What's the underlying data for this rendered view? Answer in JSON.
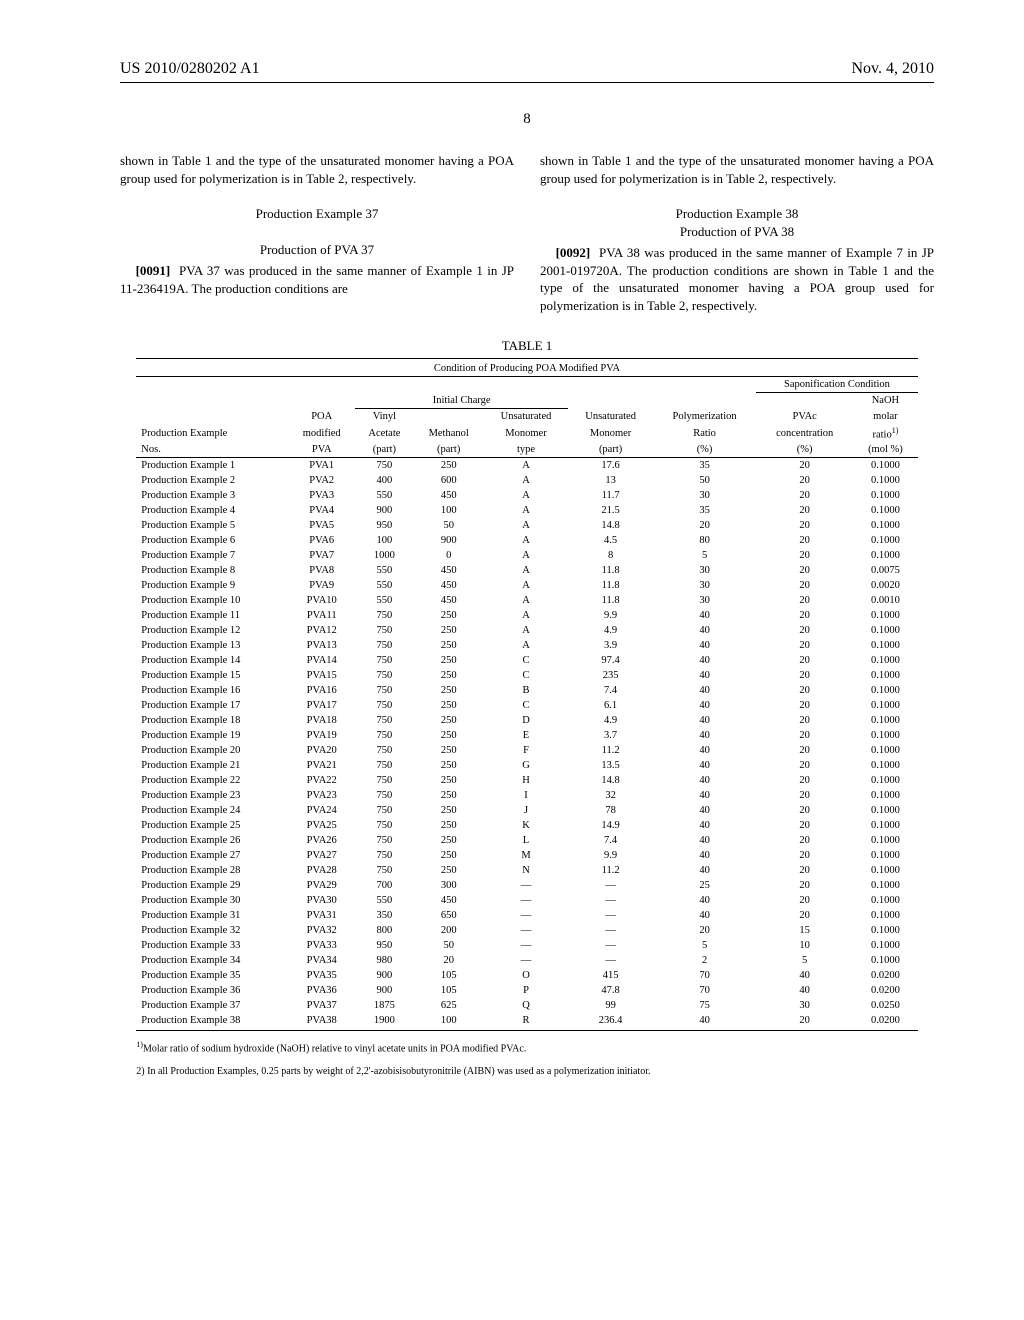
{
  "header": {
    "pubnum": "US 2010/0280202 A1",
    "date": "Nov. 4, 2010"
  },
  "pagenum": "8",
  "left_col": {
    "lead": "shown in Table 1 and the type of the unsaturated monomer having a POA group used for polymerization is in Table 2, respectively.",
    "heading1": "Production Example 37",
    "heading2": "Production of PVA 37",
    "paranum": "[0091]",
    "paratext": "PVA 37 was produced in the same manner of Example 1 in JP 11-236419A. The production conditions are"
  },
  "right_col": {
    "lead": "shown in Table 1 and the type of the unsaturated monomer having a POA group used for polymerization is in Table 2, respectively.",
    "heading1": "Production Example 38",
    "heading2": "Production of PVA 38",
    "paranum": "[0092]",
    "paratext": "PVA 38 was produced in the same manner of Example 7 in JP 2001-019720A. The production conditions are shown in Table 1 and the type of the unsaturated monomer having a POA group used for polymerization is in Table 2, respectively."
  },
  "table": {
    "label": "TABLE 1",
    "subtitle": "Condition of Producing POA Modified PVA",
    "span_heads": {
      "initial": "Initial Charge",
      "sapon": "Saponification Condition"
    },
    "cols": {
      "c0a": "Production Example",
      "c0b": "Nos.",
      "c1a": "POA",
      "c1b": "modified",
      "c1c": "PVA",
      "c2a": "Vinyl",
      "c2b": "Acetate",
      "c2c": "(part)",
      "c3a": "Methanol",
      "c3b": "(part)",
      "c4a": "Unsaturated",
      "c4b": "Monomer",
      "c4c": "type",
      "c5a": "Unsaturated",
      "c5b": "Monomer",
      "c5c": "(part)",
      "c6a": "Polymerization",
      "c6b": "Ratio",
      "c6c": "(%)",
      "c7a": "PVAc",
      "c7b": "concentration",
      "c7c": "(%)",
      "c8a": "NaOH",
      "c8b": "molar",
      "c8c": "ratio",
      "c8d": "(mol %)",
      "c8sup": "1)"
    },
    "rows": [
      [
        "Production Example 1",
        "PVA1",
        "750",
        "250",
        "A",
        "17.6",
        "35",
        "20",
        "0.1000"
      ],
      [
        "Production Example 2",
        "PVA2",
        "400",
        "600",
        "A",
        "13",
        "50",
        "20",
        "0.1000"
      ],
      [
        "Production Example 3",
        "PVA3",
        "550",
        "450",
        "A",
        "11.7",
        "30",
        "20",
        "0.1000"
      ],
      [
        "Production Example 4",
        "PVA4",
        "900",
        "100",
        "A",
        "21.5",
        "35",
        "20",
        "0.1000"
      ],
      [
        "Production Example 5",
        "PVA5",
        "950",
        "50",
        "A",
        "14.8",
        "20",
        "20",
        "0.1000"
      ],
      [
        "Production Example 6",
        "PVA6",
        "100",
        "900",
        "A",
        "4.5",
        "80",
        "20",
        "0.1000"
      ],
      [
        "Production Example 7",
        "PVA7",
        "1000",
        "0",
        "A",
        "8",
        "5",
        "20",
        "0.1000"
      ],
      [
        "Production Example 8",
        "PVA8",
        "550",
        "450",
        "A",
        "11.8",
        "30",
        "20",
        "0.0075"
      ],
      [
        "Production Example 9",
        "PVA9",
        "550",
        "450",
        "A",
        "11.8",
        "30",
        "20",
        "0.0020"
      ],
      [
        "Production Example 10",
        "PVA10",
        "550",
        "450",
        "A",
        "11.8",
        "30",
        "20",
        "0.0010"
      ],
      [
        "Production Example 11",
        "PVA11",
        "750",
        "250",
        "A",
        "9.9",
        "40",
        "20",
        "0.1000"
      ],
      [
        "Production Example 12",
        "PVA12",
        "750",
        "250",
        "A",
        "4.9",
        "40",
        "20",
        "0.1000"
      ],
      [
        "Production Example 13",
        "PVA13",
        "750",
        "250",
        "A",
        "3.9",
        "40",
        "20",
        "0.1000"
      ],
      [
        "Production Example 14",
        "PVA14",
        "750",
        "250",
        "C",
        "97.4",
        "40",
        "20",
        "0.1000"
      ],
      [
        "Production Example 15",
        "PVA15",
        "750",
        "250",
        "C",
        "235",
        "40",
        "20",
        "0.1000"
      ],
      [
        "Production Example 16",
        "PVA16",
        "750",
        "250",
        "B",
        "7.4",
        "40",
        "20",
        "0.1000"
      ],
      [
        "Production Example 17",
        "PVA17",
        "750",
        "250",
        "C",
        "6.1",
        "40",
        "20",
        "0.1000"
      ],
      [
        "Production Example 18",
        "PVA18",
        "750",
        "250",
        "D",
        "4.9",
        "40",
        "20",
        "0.1000"
      ],
      [
        "Production Example 19",
        "PVA19",
        "750",
        "250",
        "E",
        "3.7",
        "40",
        "20",
        "0.1000"
      ],
      [
        "Production Example 20",
        "PVA20",
        "750",
        "250",
        "F",
        "11.2",
        "40",
        "20",
        "0.1000"
      ],
      [
        "Production Example 21",
        "PVA21",
        "750",
        "250",
        "G",
        "13.5",
        "40",
        "20",
        "0.1000"
      ],
      [
        "Production Example 22",
        "PVA22",
        "750",
        "250",
        "H",
        "14.8",
        "40",
        "20",
        "0.1000"
      ],
      [
        "Production Example 23",
        "PVA23",
        "750",
        "250",
        "I",
        "32",
        "40",
        "20",
        "0.1000"
      ],
      [
        "Production Example 24",
        "PVA24",
        "750",
        "250",
        "J",
        "78",
        "40",
        "20",
        "0.1000"
      ],
      [
        "Production Example 25",
        "PVA25",
        "750",
        "250",
        "K",
        "14.9",
        "40",
        "20",
        "0.1000"
      ],
      [
        "Production Example 26",
        "PVA26",
        "750",
        "250",
        "L",
        "7.4",
        "40",
        "20",
        "0.1000"
      ],
      [
        "Production Example 27",
        "PVA27",
        "750",
        "250",
        "M",
        "9.9",
        "40",
        "20",
        "0.1000"
      ],
      [
        "Production Example 28",
        "PVA28",
        "750",
        "250",
        "N",
        "11.2",
        "40",
        "20",
        "0.1000"
      ],
      [
        "Production Example 29",
        "PVA29",
        "700",
        "300",
        "—",
        "—",
        "25",
        "20",
        "0.1000"
      ],
      [
        "Production Example 30",
        "PVA30",
        "550",
        "450",
        "—",
        "—",
        "40",
        "20",
        "0.1000"
      ],
      [
        "Production Example 31",
        "PVA31",
        "350",
        "650",
        "—",
        "—",
        "40",
        "20",
        "0.1000"
      ],
      [
        "Production Example 32",
        "PVA32",
        "800",
        "200",
        "—",
        "—",
        "20",
        "15",
        "0.1000"
      ],
      [
        "Production Example 33",
        "PVA33",
        "950",
        "50",
        "—",
        "—",
        "5",
        "10",
        "0.1000"
      ],
      [
        "Production Example 34",
        "PVA34",
        "980",
        "20",
        "—",
        "—",
        "2",
        "5",
        "0.1000"
      ],
      [
        "Production Example 35",
        "PVA35",
        "900",
        "105",
        "O",
        "415",
        "70",
        "40",
        "0.0200"
      ],
      [
        "Production Example 36",
        "PVA36",
        "900",
        "105",
        "P",
        "47.8",
        "70",
        "40",
        "0.0200"
      ],
      [
        "Production Example 37",
        "PVA37",
        "1875",
        "625",
        "Q",
        "99",
        "75",
        "30",
        "0.0250"
      ],
      [
        "Production Example 38",
        "PVA38",
        "1900",
        "100",
        "R",
        "236.4",
        "40",
        "20",
        "0.0200"
      ]
    ],
    "footnote1_pre": "1)",
    "footnote1": "Molar ratio of sodium hydroxide (NaOH) relative to vinyl acetate units in POA modified PVAc.",
    "footnote2": "2) In all Production Examples, 0.25 parts by weight of 2,2'-azobisisobutyronitrile (AIBN) was used as a polymerization initiator."
  }
}
